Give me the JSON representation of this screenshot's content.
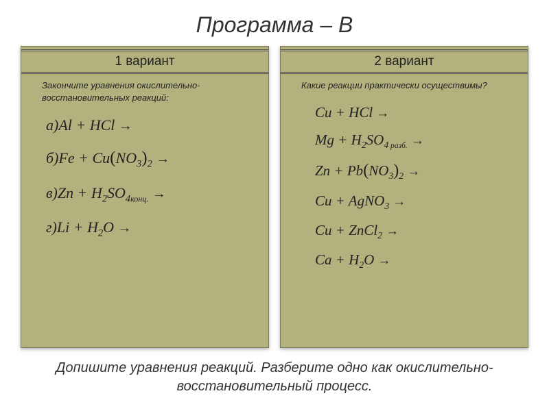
{
  "title": "Программа – В",
  "variant1": {
    "header": "1 вариант",
    "instruction": "Закончите уравнения окислительно-восстановительных реакций:"
  },
  "variant2": {
    "header": "2 вариант",
    "instruction": "Какие реакции практически осуществимы?"
  },
  "bottom_note": "Допишите уравнения реакций. Разберите одно как окислительно-восстановительный процесс.",
  "colors": {
    "panel_bg": "#b3b17e",
    "panel_border": "#7a7a5a",
    "page_bg": "#ffffff",
    "text_main": "#333333",
    "text_panel": "#222222"
  },
  "typography": {
    "title_fontsize": 32,
    "header_fontsize": 19,
    "instruction_fontsize": 13,
    "equation_fontsize_col1": 22,
    "equation_fontsize_col2": 21,
    "bottom_fontsize": 20,
    "equation_font": "Times New Roman"
  },
  "equations": {
    "col1": [
      {
        "label": "а)",
        "lhs": "Al + HCl",
        "formula_parts": [
          "Al",
          "+",
          "HCl"
        ]
      },
      {
        "label": "б)",
        "lhs": "Fe + Cu(NO3)2",
        "formula_parts": [
          "Fe",
          "+",
          "Cu(NO3)2"
        ]
      },
      {
        "label": "в)",
        "lhs": "Zn + H2SO4 конц.",
        "formula_parts": [
          "Zn",
          "+",
          "H2SO4 конц."
        ]
      },
      {
        "label": "г)",
        "lhs": "Li + H2O",
        "formula_parts": [
          "Li",
          "+",
          "H2O"
        ]
      }
    ],
    "col2": [
      {
        "lhs": "Cu + HCl",
        "formula_parts": [
          "Cu",
          "+",
          "HCl"
        ]
      },
      {
        "lhs": "Mg + H2SO4 разб.",
        "formula_parts": [
          "Mg",
          "+",
          "H2SO4 разб."
        ]
      },
      {
        "lhs": "Zn + Pb(NO3)2",
        "formula_parts": [
          "Zn",
          "+",
          "Pb(NO3)2"
        ]
      },
      {
        "lhs": "Cu + AgNO3",
        "formula_parts": [
          "Cu",
          "+",
          "AgNO3"
        ]
      },
      {
        "lhs": "Cu + ZnCl2",
        "formula_parts": [
          "Cu",
          "+",
          "ZnCl2"
        ]
      },
      {
        "lhs": "Ca + H2O",
        "formula_parts": [
          "Ca",
          "+",
          "H2O"
        ]
      }
    ]
  }
}
